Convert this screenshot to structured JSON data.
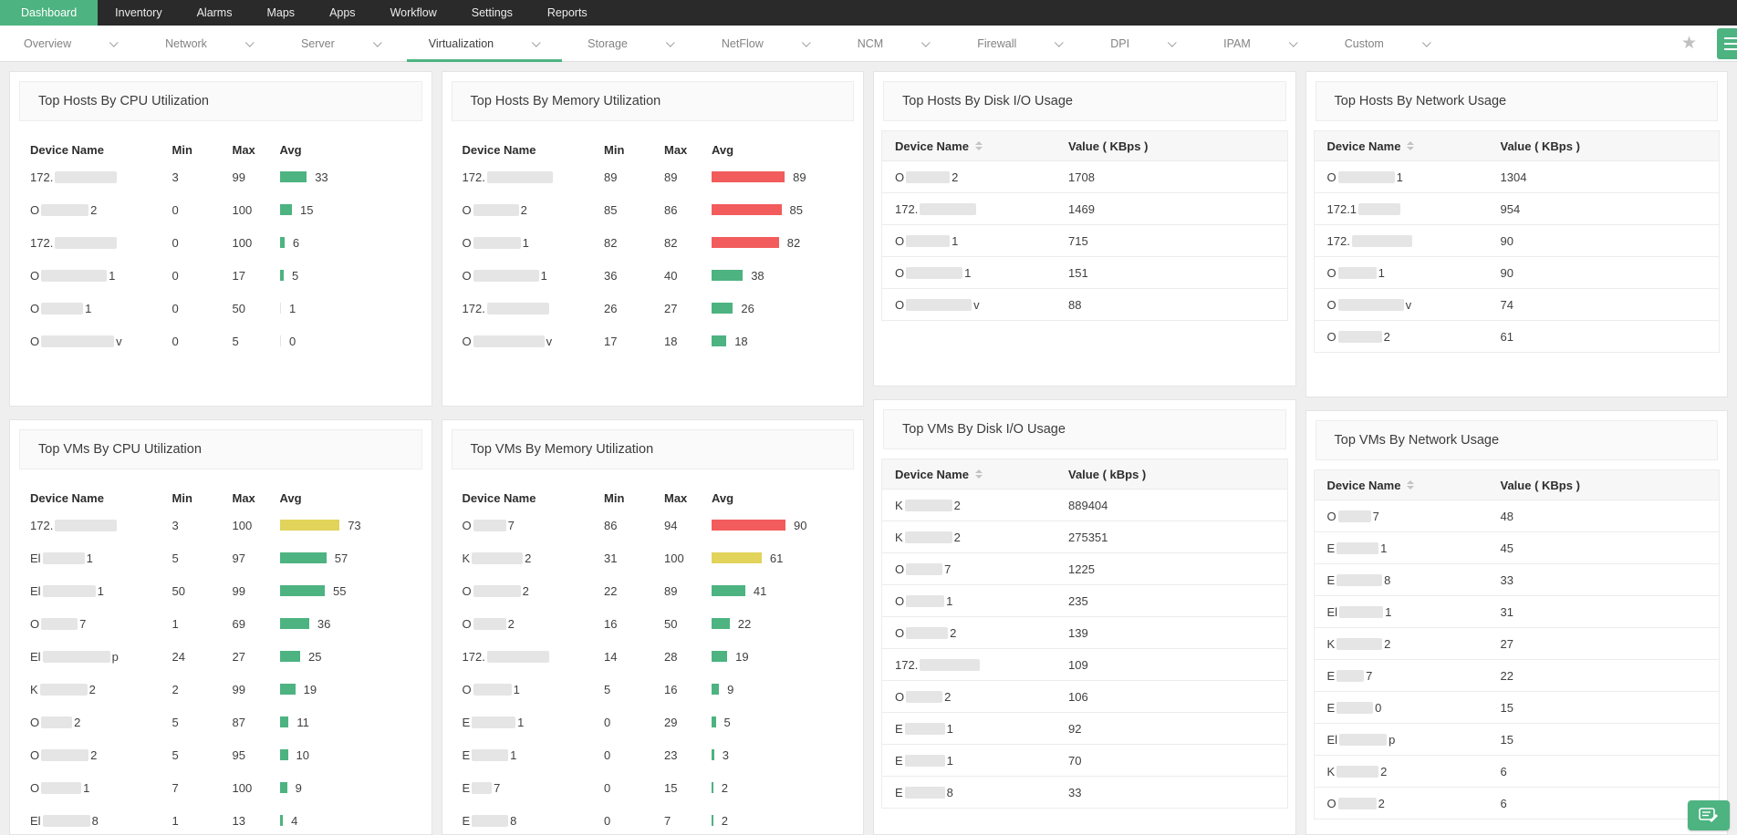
{
  "colors": {
    "green": "#4db381",
    "red": "#f25c5c",
    "yellow": "#e2d35b",
    "nav_bg": "#2a2a2a"
  },
  "nav": {
    "items": [
      {
        "label": "Dashboard",
        "active": true
      },
      {
        "label": "Inventory",
        "active": false
      },
      {
        "label": "Alarms",
        "active": false
      },
      {
        "label": "Maps",
        "active": false
      },
      {
        "label": "Apps",
        "active": false
      },
      {
        "label": "Workflow",
        "active": false
      },
      {
        "label": "Settings",
        "active": false
      },
      {
        "label": "Reports",
        "active": false
      }
    ]
  },
  "subnav": {
    "items": [
      {
        "label": "Overview",
        "active": false
      },
      {
        "label": "Network",
        "active": false
      },
      {
        "label": "Server",
        "active": false
      },
      {
        "label": "Virtualization",
        "active": true
      },
      {
        "label": "Storage",
        "active": false
      },
      {
        "label": "NetFlow",
        "active": false
      },
      {
        "label": "NCM",
        "active": false
      },
      {
        "label": "Firewall",
        "active": false
      },
      {
        "label": "DPI",
        "active": false
      },
      {
        "label": "IPAM",
        "active": false
      },
      {
        "label": "Custom",
        "active": false
      }
    ]
  },
  "widgets": {
    "hosts_cpu": {
      "title": "Top Hosts By CPU Utilization",
      "columns": [
        "Device Name",
        "Min",
        "Max",
        "Avg"
      ],
      "rows": [
        {
          "pre": "172.",
          "block": 68,
          "post": "",
          "min": 3,
          "max": 99,
          "avg": 33,
          "color": "green"
        },
        {
          "pre": "O",
          "block": 52,
          "post": "2",
          "min": 0,
          "max": 100,
          "avg": 15,
          "color": "green"
        },
        {
          "pre": "172.",
          "block": 68,
          "post": "",
          "min": 0,
          "max": 100,
          "avg": 6,
          "color": "green"
        },
        {
          "pre": "O",
          "block": 72,
          "post": "1",
          "min": 0,
          "max": 17,
          "avg": 5,
          "color": "green"
        },
        {
          "pre": "O",
          "block": 46,
          "post": "1",
          "min": 0,
          "max": 50,
          "avg": 1,
          "color": "zero"
        },
        {
          "pre": "O",
          "block": 80,
          "post": "v",
          "min": 0,
          "max": 5,
          "avg": 0,
          "color": "zero"
        }
      ]
    },
    "hosts_mem": {
      "title": "Top Hosts By Memory Utilization",
      "columns": [
        "Device Name",
        "Min",
        "Max",
        "Avg"
      ],
      "rows": [
        {
          "pre": "172.",
          "block": 72,
          "post": "",
          "min": 89,
          "max": 89,
          "avg": 89,
          "color": "red"
        },
        {
          "pre": "O",
          "block": 50,
          "post": "2",
          "min": 85,
          "max": 86,
          "avg": 85,
          "color": "red"
        },
        {
          "pre": "O",
          "block": 52,
          "post": "1",
          "min": 82,
          "max": 82,
          "avg": 82,
          "color": "red"
        },
        {
          "pre": "O",
          "block": 72,
          "post": "1",
          "min": 36,
          "max": 40,
          "avg": 38,
          "color": "green"
        },
        {
          "pre": "172.",
          "block": 68,
          "post": "",
          "min": 26,
          "max": 27,
          "avg": 26,
          "color": "green"
        },
        {
          "pre": "O",
          "block": 78,
          "post": "v",
          "min": 17,
          "max": 18,
          "avg": 18,
          "color": "green"
        }
      ]
    },
    "vms_cpu": {
      "title": "Top VMs By CPU Utilization",
      "columns": [
        "Device Name",
        "Min",
        "Max",
        "Avg"
      ],
      "rows": [
        {
          "pre": "172.",
          "block": 68,
          "post": "",
          "min": 3,
          "max": 100,
          "avg": 73,
          "color": "yellow"
        },
        {
          "pre": "El",
          "block": 46,
          "post": "1",
          "min": 5,
          "max": 97,
          "avg": 57,
          "color": "green"
        },
        {
          "pre": "El",
          "block": 58,
          "post": "1",
          "min": 50,
          "max": 99,
          "avg": 55,
          "color": "green"
        },
        {
          "pre": "O",
          "block": 40,
          "post": "7",
          "min": 1,
          "max": 69,
          "avg": 36,
          "color": "green"
        },
        {
          "pre": "El",
          "block": 74,
          "post": "p",
          "min": 24,
          "max": 27,
          "avg": 25,
          "color": "green"
        },
        {
          "pre": "K",
          "block": 52,
          "post": "2",
          "min": 2,
          "max": 99,
          "avg": 19,
          "color": "green"
        },
        {
          "pre": "O",
          "block": 34,
          "post": "2",
          "min": 5,
          "max": 87,
          "avg": 11,
          "color": "green"
        },
        {
          "pre": "O",
          "block": 52,
          "post": "2",
          "min": 5,
          "max": 95,
          "avg": 10,
          "color": "green"
        },
        {
          "pre": "O",
          "block": 44,
          "post": "1",
          "min": 7,
          "max": 100,
          "avg": 9,
          "color": "green"
        },
        {
          "pre": "El",
          "block": 52,
          "post": "8",
          "min": 1,
          "max": 13,
          "avg": 4,
          "color": "green"
        }
      ]
    },
    "vms_mem": {
      "title": "Top VMs By Memory Utilization",
      "columns": [
        "Device Name",
        "Min",
        "Max",
        "Avg"
      ],
      "rows": [
        {
          "pre": "O",
          "block": 36,
          "post": "7",
          "min": 86,
          "max": 94,
          "avg": 90,
          "color": "red"
        },
        {
          "pre": "K",
          "block": 56,
          "post": "2",
          "min": 31,
          "max": 100,
          "avg": 61,
          "color": "yellow"
        },
        {
          "pre": "O",
          "block": 52,
          "post": "2",
          "min": 22,
          "max": 89,
          "avg": 41,
          "color": "green"
        },
        {
          "pre": "O",
          "block": 36,
          "post": "2",
          "min": 16,
          "max": 50,
          "avg": 22,
          "color": "green"
        },
        {
          "pre": "172.",
          "block": 68,
          "post": "",
          "min": 14,
          "max": 28,
          "avg": 19,
          "color": "green"
        },
        {
          "pre": "O",
          "block": 42,
          "post": "1",
          "min": 5,
          "max": 16,
          "avg": 9,
          "color": "green"
        },
        {
          "pre": "E",
          "block": 48,
          "post": "1",
          "min": 0,
          "max": 29,
          "avg": 5,
          "color": "green"
        },
        {
          "pre": "E",
          "block": 40,
          "post": "1",
          "min": 0,
          "max": 23,
          "avg": 3,
          "color": "green"
        },
        {
          "pre": "E",
          "block": 22,
          "post": "7",
          "min": 0,
          "max": 15,
          "avg": 2,
          "color": "green"
        },
        {
          "pre": "E",
          "block": 40,
          "post": "8",
          "min": 0,
          "max": 7,
          "avg": 2,
          "color": "green"
        }
      ]
    },
    "hosts_disk": {
      "title": "Top Hosts By Disk I/O Usage",
      "columns": [
        "Device Name",
        "Value ( KBps )"
      ],
      "rows": [
        {
          "pre": "O",
          "block": 48,
          "post": "2",
          "value": "1708"
        },
        {
          "pre": "172.",
          "block": 62,
          "post": "",
          "value": "1469"
        },
        {
          "pre": "O",
          "block": 48,
          "post": "1",
          "value": "715"
        },
        {
          "pre": "O",
          "block": 62,
          "post": "1",
          "value": "151"
        },
        {
          "pre": "O",
          "block": 72,
          "post": "v",
          "value": "88"
        }
      ]
    },
    "vms_disk": {
      "title": "Top VMs By Disk I/O Usage",
      "columns": [
        "Device Name",
        "Value ( kBps )"
      ],
      "rows": [
        {
          "pre": "K",
          "block": 52,
          "post": "2",
          "value": "889404"
        },
        {
          "pre": "K",
          "block": 52,
          "post": "2",
          "value": "275351"
        },
        {
          "pre": "O",
          "block": 40,
          "post": "7",
          "value": "1225"
        },
        {
          "pre": "O",
          "block": 42,
          "post": "1",
          "value": "235"
        },
        {
          "pre": "O",
          "block": 46,
          "post": "2",
          "value": "139"
        },
        {
          "pre": "172.",
          "block": 66,
          "post": "",
          "value": "109"
        },
        {
          "pre": "O",
          "block": 40,
          "post": "2",
          "value": "106"
        },
        {
          "pre": "E",
          "block": 44,
          "post": "1",
          "value": "92"
        },
        {
          "pre": "E",
          "block": 44,
          "post": "1",
          "value": "70"
        },
        {
          "pre": "E",
          "block": 44,
          "post": "8",
          "value": "33"
        }
      ]
    },
    "hosts_net": {
      "title": "Top Hosts By Network Usage",
      "columns": [
        "Device Name",
        "Value ( KBps )"
      ],
      "rows": [
        {
          "pre": "O",
          "block": 62,
          "post": "1",
          "value": "1304"
        },
        {
          "pre": "172.1",
          "block": 46,
          "post": "",
          "value": "954"
        },
        {
          "pre": "172.",
          "block": 66,
          "post": "",
          "value": "90"
        },
        {
          "pre": "O",
          "block": 42,
          "post": "1",
          "value": "90"
        },
        {
          "pre": "O",
          "block": 72,
          "post": "v",
          "value": "74"
        },
        {
          "pre": "O",
          "block": 48,
          "post": "2",
          "value": "61"
        }
      ]
    },
    "vms_net": {
      "title": "Top VMs By Network Usage",
      "columns": [
        "Device Name",
        "Value ( KBps )"
      ],
      "rows": [
        {
          "pre": "O",
          "block": 36,
          "post": "7",
          "value": "48"
        },
        {
          "pre": "E",
          "block": 46,
          "post": "1",
          "value": "45"
        },
        {
          "pre": "E",
          "block": 50,
          "post": "8",
          "value": "33"
        },
        {
          "pre": "El",
          "block": 48,
          "post": "1",
          "value": "31"
        },
        {
          "pre": "K",
          "block": 50,
          "post": "2",
          "value": "27"
        },
        {
          "pre": "E",
          "block": 30,
          "post": "7",
          "value": "22"
        },
        {
          "pre": "E",
          "block": 40,
          "post": "0",
          "value": "15"
        },
        {
          "pre": "El",
          "block": 52,
          "post": "p",
          "value": "15"
        },
        {
          "pre": "K",
          "block": 46,
          "post": "2",
          "value": "6"
        },
        {
          "pre": "O",
          "block": 42,
          "post": "2",
          "value": "6"
        }
      ]
    }
  },
  "icons": {
    "star": "★",
    "favorite": "star-icon",
    "corner": "menu-lines-icon",
    "chat": "chat-icon"
  }
}
